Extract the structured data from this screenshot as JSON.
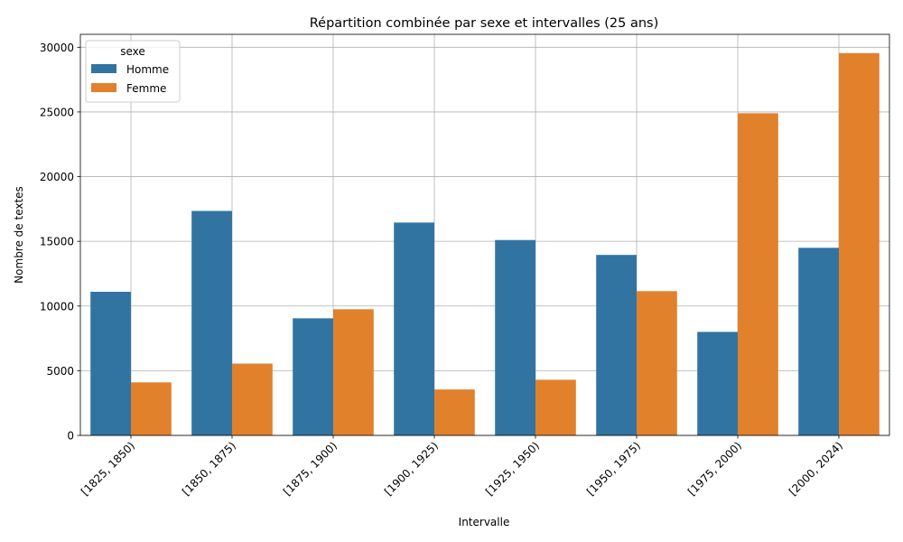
{
  "chart_data": {
    "type": "bar",
    "title": "Répartition combinée par sexe et intervalles (25 ans)",
    "xlabel": "Intervalle",
    "ylabel": "Nombre de textes",
    "categories": [
      "[1825, 1850)",
      "[1850, 1875)",
      "[1875, 1900)",
      "[1900, 1925)",
      "[1925, 1950)",
      "[1950, 1975)",
      "[1975, 2000)",
      "[2000, 2024)"
    ],
    "series": [
      {
        "name": "Homme",
        "color": "#3274a1",
        "values": [
          11100,
          17350,
          9050,
          16450,
          15100,
          13950,
          8000,
          14500
        ]
      },
      {
        "name": "Femme",
        "color": "#e1812c",
        "values": [
          4100,
          5550,
          9750,
          3550,
          4300,
          11150,
          24900,
          29550
        ]
      }
    ],
    "ylim": [
      0,
      31000
    ],
    "yticks": [
      0,
      5000,
      10000,
      15000,
      20000,
      25000,
      30000
    ],
    "grid": true,
    "legend": {
      "title": "sexe",
      "placement": "top-left"
    }
  }
}
